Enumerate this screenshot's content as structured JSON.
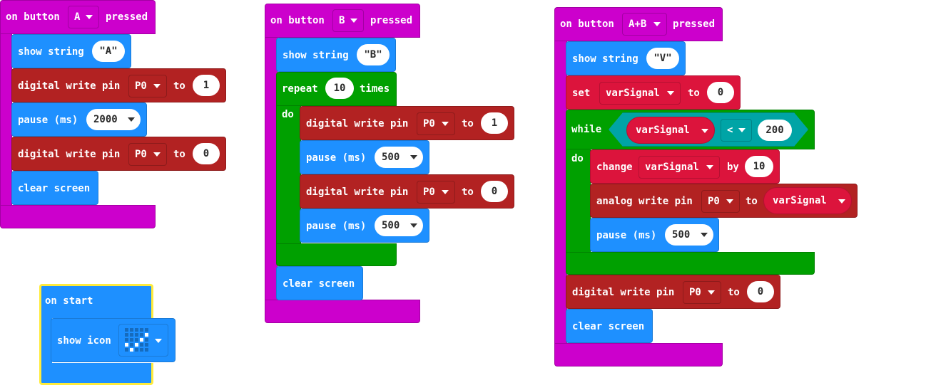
{
  "workspace": {
    "script_a": {
      "hat": {
        "prefix": "on button",
        "button": "A",
        "suffix": "pressed"
      },
      "show_string": {
        "label": "show string",
        "value": "\"A\""
      },
      "write1": {
        "label": "digital write pin",
        "pin": "P0",
        "to": "to",
        "value": "1"
      },
      "pause": {
        "label": "pause (ms)",
        "value": "2000"
      },
      "write2": {
        "label": "digital write pin",
        "pin": "P0",
        "to": "to",
        "value": "0"
      },
      "clear": {
        "label": "clear screen"
      }
    },
    "script_b": {
      "hat": {
        "prefix": "on button",
        "button": "B",
        "suffix": "pressed"
      },
      "show_string": {
        "label": "show string",
        "value": "\"B\""
      },
      "repeat": {
        "label": "repeat",
        "count": "10",
        "times": "times",
        "do": "do"
      },
      "write1": {
        "label": "digital write pin",
        "pin": "P0",
        "to": "to",
        "value": "1"
      },
      "pause1": {
        "label": "pause (ms)",
        "value": "500"
      },
      "write2": {
        "label": "digital write pin",
        "pin": "P0",
        "to": "to",
        "value": "0"
      },
      "pause2": {
        "label": "pause (ms)",
        "value": "500"
      },
      "clear": {
        "label": "clear screen"
      }
    },
    "script_ab": {
      "hat": {
        "prefix": "on button",
        "button": "A+B",
        "suffix": "pressed"
      },
      "show_string": {
        "label": "show string",
        "value": "\"V\""
      },
      "set": {
        "label": "set",
        "var": "varSignal",
        "to": "to",
        "value": "0"
      },
      "while": {
        "label": "while",
        "var": "varSignal",
        "op": "<",
        "value": "200",
        "do": "do"
      },
      "change": {
        "label": "change",
        "var": "varSignal",
        "by": "by",
        "value": "10"
      },
      "analog": {
        "label": "analog write pin",
        "pin": "P0",
        "to": "to",
        "var": "varSignal"
      },
      "pause": {
        "label": "pause (ms)",
        "value": "500"
      },
      "write": {
        "label": "digital write pin",
        "pin": "P0",
        "to": "to",
        "value": "0"
      },
      "clear": {
        "label": "clear screen"
      }
    },
    "script_start": {
      "hat": {
        "label": "on start"
      },
      "show_icon": {
        "label": "show icon",
        "icon": "checkmark-icon"
      }
    }
  },
  "colors": {
    "event": "#cc00cc",
    "basic": "#1e90ff",
    "pins": "#b22222",
    "loops": "#00a000",
    "variables": "#dc143c",
    "logic": "#00a4a6",
    "selected_outline": "#ffeb3b"
  }
}
